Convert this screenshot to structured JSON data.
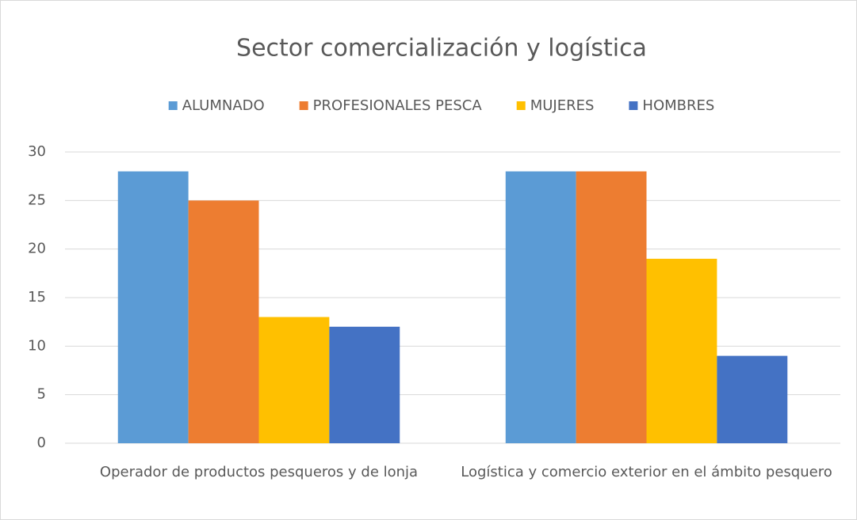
{
  "chart_data": {
    "type": "bar",
    "title": "Sector comercialización y logística",
    "categories": [
      "Operador de productos pesqueros y de lonja",
      "Logística y comercio exterior en el ámbito pesquero"
    ],
    "series": [
      {
        "name": "ALUMNADO",
        "color": "#5b9bd5",
        "values": [
          28,
          28
        ]
      },
      {
        "name": "PROFESIONALES PESCA",
        "color": "#ed7d31",
        "values": [
          25,
          28
        ]
      },
      {
        "name": "MUJERES",
        "color": "#ffc000",
        "values": [
          13,
          19
        ]
      },
      {
        "name": "HOMBRES",
        "color": "#4472c4",
        "values": [
          12,
          9
        ]
      }
    ],
    "ylim": [
      0,
      30
    ],
    "yticks": [
      0,
      5,
      10,
      15,
      20,
      25,
      30
    ],
    "grid": true,
    "legend": "top"
  }
}
